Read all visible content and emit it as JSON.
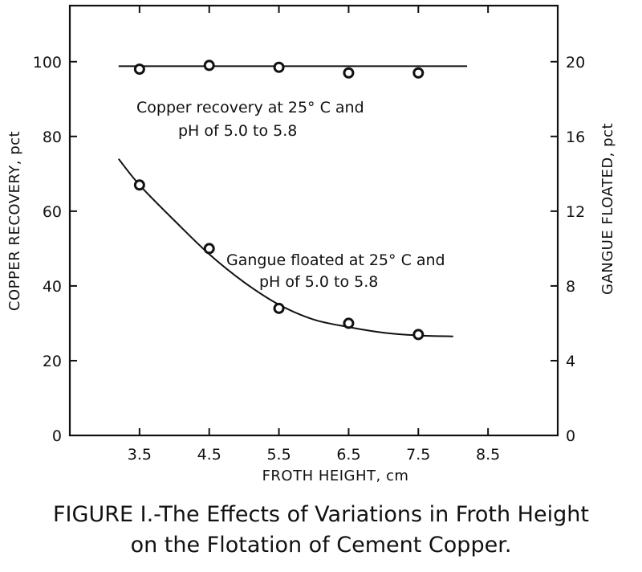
{
  "chart_data": {
    "type": "line",
    "xlabel": "FROTH HEIGHT, cm",
    "ylabel_left": "COPPER RECOVERY, pct",
    "ylabel_right": "GANGUE FLOATED, pct",
    "xlim": [
      2.5,
      9.5
    ],
    "ylim_left": [
      0,
      115
    ],
    "ylim_right": [
      0,
      23
    ],
    "x_ticks": [
      3.5,
      4.5,
      5.5,
      6.5,
      7.5,
      8.5
    ],
    "x_tick_labels": [
      "3.5",
      "4.5",
      "5.5",
      "6.5",
      "7.5",
      "8.5"
    ],
    "y_left_ticks": [
      0,
      20,
      40,
      60,
      80,
      100
    ],
    "y_left_tick_labels": [
      "0",
      "20",
      "40",
      "60",
      "80",
      "100"
    ],
    "y_right_ticks": [
      0,
      4,
      8,
      12,
      16,
      20
    ],
    "y_right_tick_labels": [
      "0",
      "4",
      "8",
      "12",
      "16",
      "20"
    ],
    "grid": false,
    "series": [
      {
        "name": "Copper recovery",
        "axis": "left",
        "x": [
          3.5,
          4.5,
          5.5,
          6.5,
          7.5
        ],
        "values": [
          98,
          99,
          98.5,
          97,
          97
        ],
        "curve_x": [
          3.2,
          8.2
        ],
        "curve_values": [
          98.8,
          98.8
        ],
        "annotation_lines": [
          "Copper recovery at 25° C and",
          "pH of 5.0 to 5.8"
        ]
      },
      {
        "name": "Gangue floated",
        "axis": "right",
        "x": [
          3.5,
          4.5,
          5.5,
          6.5,
          7.5
        ],
        "values": [
          13.4,
          10,
          6.8,
          6,
          5.4
        ],
        "curve_x": [
          3.2,
          3.5,
          4.0,
          4.5,
          5.0,
          5.5,
          6.0,
          6.5,
          7.0,
          7.5,
          8.0
        ],
        "curve_values": [
          14.8,
          13.4,
          11.5,
          9.7,
          8.2,
          7.0,
          6.2,
          5.8,
          5.5,
          5.35,
          5.3
        ],
        "annotation_lines": [
          "Gangue floated at 25° C and",
          "pH of 5.0 to 5.8"
        ]
      }
    ]
  },
  "caption": {
    "line1": "FIGURE I.-The Effects of Variations in Froth Height",
    "line2": "on the Flotation of Cement Copper."
  }
}
